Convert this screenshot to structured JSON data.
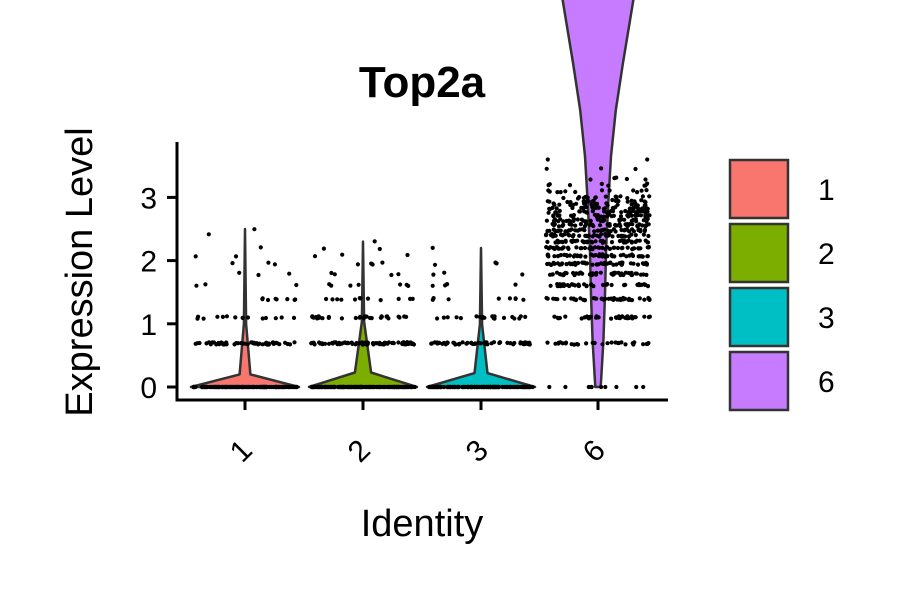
{
  "chart_data": {
    "type": "violin",
    "title": "Top2a",
    "xlabel": "Identity",
    "ylabel": "Expression Level",
    "categories": [
      "1",
      "2",
      "3",
      "6"
    ],
    "ylim": [
      0,
      3.8
    ],
    "yticks": [
      "0",
      "1",
      "2",
      "3"
    ],
    "colors": [
      "#F8766D",
      "#7CAE00",
      "#00BFC4",
      "#C77CFF"
    ],
    "series": [
      {
        "name": "1",
        "max": 2.5,
        "dist": [
          [
            0,
            1
          ],
          [
            0.08,
            0.1
          ],
          [
            0.4,
            0.02
          ],
          [
            1,
            0
          ]
        ],
        "point_levels": [
          [
            0,
            180
          ],
          [
            0.69,
            55
          ],
          [
            1.1,
            14
          ],
          [
            1.39,
            8
          ],
          [
            1.61,
            3
          ],
          [
            1.79,
            3
          ],
          [
            1.95,
            3
          ],
          [
            2.08,
            2
          ],
          [
            2.2,
            1
          ],
          [
            2.4,
            1
          ],
          [
            2.5,
            1
          ]
        ]
      },
      {
        "name": "2",
        "max": 2.3,
        "dist": [
          [
            0,
            1
          ],
          [
            0.1,
            0.15
          ],
          [
            0.45,
            0.02
          ],
          [
            1,
            0
          ]
        ],
        "point_levels": [
          [
            0,
            200
          ],
          [
            0.69,
            90
          ],
          [
            1.1,
            32
          ],
          [
            1.39,
            12
          ],
          [
            1.61,
            7
          ],
          [
            1.79,
            4
          ],
          [
            1.95,
            4
          ],
          [
            2.08,
            3
          ],
          [
            2.2,
            2
          ],
          [
            2.3,
            1
          ]
        ]
      },
      {
        "name": "3",
        "max": 2.2,
        "dist": [
          [
            0,
            1
          ],
          [
            0.1,
            0.12
          ],
          [
            0.45,
            0.02
          ],
          [
            1,
            0
          ]
        ],
        "point_levels": [
          [
            0,
            190
          ],
          [
            0.69,
            60
          ],
          [
            1.1,
            20
          ],
          [
            1.39,
            8
          ],
          [
            1.61,
            4
          ],
          [
            1.79,
            3
          ],
          [
            1.95,
            3
          ],
          [
            2.2,
            1
          ]
        ]
      },
      {
        "name": "6",
        "max": 3.65,
        "dist": [
          [
            0,
            0.05
          ],
          [
            0.2,
            0.1
          ],
          [
            0.4,
            0.13
          ],
          [
            0.6,
            0.15
          ],
          [
            0.8,
            0.19
          ],
          [
            1,
            0.24
          ],
          [
            1.2,
            0.33
          ],
          [
            1.4,
            0.46
          ],
          [
            1.6,
            0.6
          ],
          [
            1.8,
            0.74
          ],
          [
            2,
            0.85
          ],
          [
            2.2,
            0.92
          ],
          [
            2.4,
            0.96
          ],
          [
            2.6,
            1
          ],
          [
            2.8,
            0.95
          ],
          [
            3,
            0.78
          ],
          [
            3.2,
            0.46
          ],
          [
            3.4,
            0.22
          ],
          [
            3.6,
            0.06
          ],
          [
            3.65,
            0
          ]
        ],
        "point_levels": [
          [
            0,
            10
          ],
          [
            0.69,
            30
          ],
          [
            1.1,
            38
          ],
          [
            1.39,
            45
          ],
          [
            1.61,
            40
          ],
          [
            1.79,
            48
          ],
          [
            1.95,
            55
          ],
          [
            2.08,
            50
          ],
          [
            2.2,
            48
          ],
          [
            2.3,
            46
          ],
          [
            2.4,
            44
          ],
          [
            2.48,
            40
          ],
          [
            2.56,
            38
          ],
          [
            2.64,
            36
          ],
          [
            2.71,
            34
          ],
          [
            2.77,
            30
          ],
          [
            2.83,
            26
          ],
          [
            2.89,
            22
          ],
          [
            2.94,
            18
          ],
          [
            3.0,
            16
          ],
          [
            3.1,
            12
          ],
          [
            3.2,
            8
          ],
          [
            3.3,
            5
          ],
          [
            3.45,
            3
          ],
          [
            3.6,
            2
          ]
        ]
      }
    ],
    "legend": {
      "position": "right",
      "items": [
        "1",
        "2",
        "3",
        "6"
      ]
    }
  }
}
